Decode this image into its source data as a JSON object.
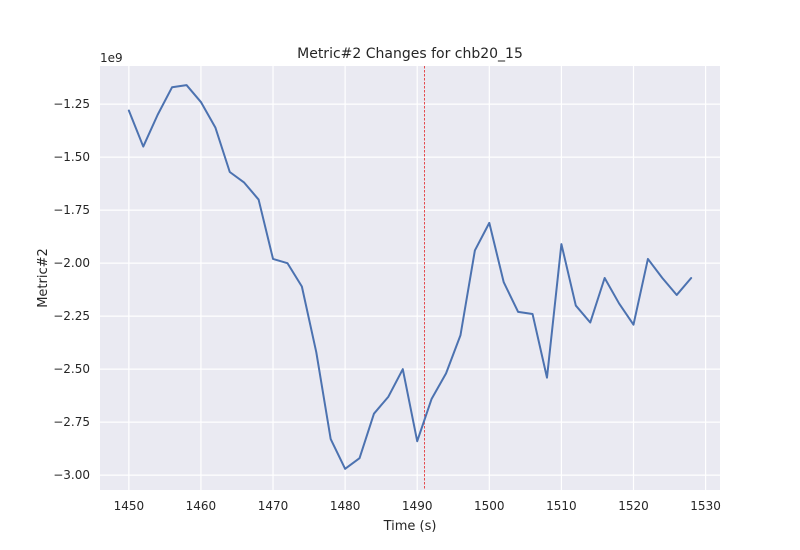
{
  "chart_data": {
    "type": "line",
    "title": "Metric#2 Changes for chb20_15",
    "xlabel": "Time (s)",
    "ylabel": "Metric#2",
    "offset_label": "1e9",
    "xlim": [
      1446,
      1532
    ],
    "ylim": [
      -3.07,
      -1.07
    ],
    "x_ticks": [
      1450,
      1460,
      1470,
      1480,
      1490,
      1500,
      1510,
      1520,
      1530
    ],
    "x_tick_labels": [
      "1450",
      "1460",
      "1470",
      "1480",
      "1490",
      "1500",
      "1510",
      "1520",
      "1530"
    ],
    "y_ticks": [
      -3.0,
      -2.75,
      -2.5,
      -2.25,
      -2.0,
      -1.75,
      -1.5,
      -1.25
    ],
    "y_tick_labels": [
      "−3.00",
      "−2.75",
      "−2.50",
      "−2.25",
      "−2.00",
      "−1.75",
      "−1.50",
      "−1.25"
    ],
    "grid": true,
    "series": [
      {
        "color": "#4c72b0",
        "x": [
          1450,
          1452,
          1454,
          1456,
          1458,
          1460,
          1462,
          1464,
          1466,
          1468,
          1470,
          1472,
          1474,
          1476,
          1478,
          1480,
          1482,
          1484,
          1486,
          1488,
          1490,
          1492,
          1494,
          1496,
          1498,
          1500,
          1502,
          1504,
          1506,
          1508,
          1510,
          1512,
          1514,
          1516,
          1518,
          1520,
          1522,
          1524,
          1526,
          1528
        ],
        "y": [
          -1.28,
          -1.45,
          -1.3,
          -1.17,
          -1.16,
          -1.24,
          -1.36,
          -1.57,
          -1.62,
          -1.7,
          -1.98,
          -2.0,
          -2.11,
          -2.42,
          -2.83,
          -2.97,
          -2.92,
          -2.71,
          -2.63,
          -2.5,
          -2.84,
          -2.64,
          -2.52,
          -2.34,
          -1.94,
          -1.81,
          -2.09,
          -2.23,
          -2.24,
          -2.54,
          -1.91,
          -2.2,
          -2.28,
          -2.07,
          -2.19,
          -2.29,
          -1.98,
          -2.07,
          -2.15,
          -2.07
        ]
      }
    ],
    "vline": {
      "x": 1491,
      "color": "#e32626"
    },
    "background_color": "#eaeaf2",
    "grid_color": "#ffffff"
  }
}
